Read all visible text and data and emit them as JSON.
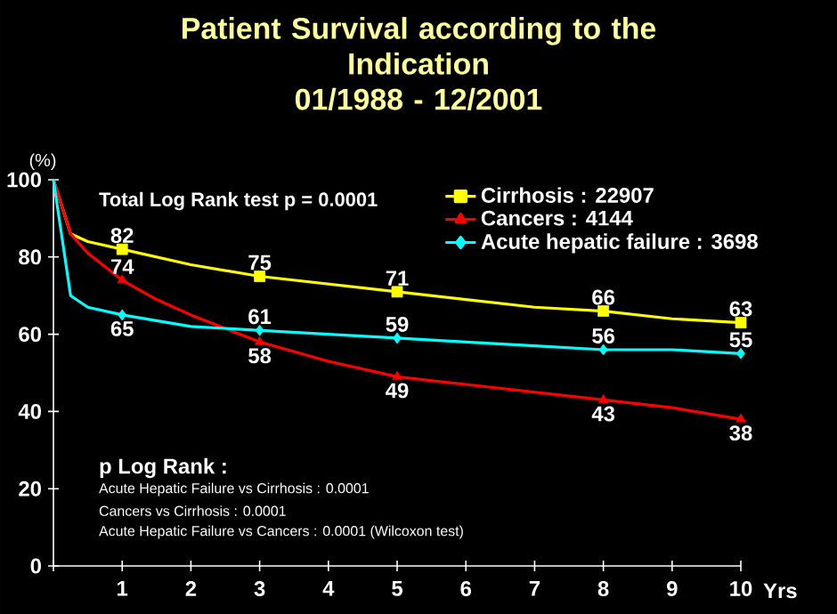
{
  "chart_data": {
    "type": "line",
    "title": "Patient Survival according to the\nIndication\n01/1988 - 12/2001",
    "xlabel": "Yrs",
    "ylabel": "(%)",
    "xlim": [
      0,
      10
    ],
    "ylim": [
      0,
      100
    ],
    "xticks": [
      {
        "value": 0,
        "label": null
      },
      1,
      2,
      3,
      4,
      5,
      6,
      7,
      8,
      9,
      10
    ],
    "yticks": [
      0,
      20,
      40,
      60,
      80,
      100
    ],
    "grid": false,
    "legend": "top right",
    "line_style": "solid",
    "annotations": [
      "Total Log Rank test p = 0.0001",
      "**p Log Rank :**",
      "Acute Hepatic Failure vs Cirrhosis : 0.0001",
      "Cancers vs Cirrhosis : 0.0001",
      "Acute Hepatic Failure vs Cancers : 0.0001 (Wilcoxon test)"
    ],
    "series": [
      {
        "name": "Cirrhosis : 22907",
        "color": "#ffff00",
        "x": [
          0,
          0.25,
          0.5,
          1,
          2,
          3,
          4,
          5,
          6,
          7,
          8,
          9,
          10
        ],
        "values": [
          100,
          86,
          84,
          82,
          78,
          75,
          73,
          71,
          69,
          67,
          66,
          64,
          63
        ]
      },
      {
        "name": "Cancers : 4144",
        "color": "#ff0000",
        "x": [
          0,
          0.25,
          0.5,
          1,
          1.5,
          2,
          3,
          4,
          5,
          6,
          7,
          8,
          9,
          10
        ],
        "values": [
          100,
          86,
          81,
          74,
          69,
          65,
          58,
          53,
          49,
          47,
          45,
          43,
          41,
          38
        ]
      },
      {
        "name": "Acute hepatic failure : 3698",
        "color": "#00ffff",
        "x": [
          0,
          0.25,
          0.5,
          1,
          2,
          3,
          4,
          5,
          6,
          7,
          8,
          9,
          10
        ],
        "values": [
          100,
          70,
          67,
          65,
          62,
          61,
          60,
          59,
          58,
          57,
          56,
          56,
          55
        ]
      },
      {
        "type": "scatter",
        "color": "#ffff00",
        "marker": "square",
        "x": [
          1,
          3,
          5,
          8,
          10
        ],
        "values": [
          82,
          75,
          71,
          66,
          63
        ],
        "value_labels": [
          "82",
          "75",
          "71",
          "66",
          "63"
        ]
      },
      {
        "type": "scatter",
        "color": "#ff0000",
        "marker": "triangle",
        "x": [
          1,
          3,
          5,
          8,
          10
        ],
        "values": [
          74,
          58,
          49,
          43,
          38
        ],
        "value_labels": [
          "74",
          "58",
          "49",
          "43",
          "38"
        ]
      },
      {
        "type": "scatter",
        "color": "#00ffff",
        "marker": "diamond",
        "x": [
          1,
          3,
          5,
          8,
          10
        ],
        "values": [
          65,
          61,
          59,
          56,
          55
        ],
        "value_labels": [
          "65",
          "61",
          "59",
          "56",
          "55"
        ]
      }
    ]
  }
}
